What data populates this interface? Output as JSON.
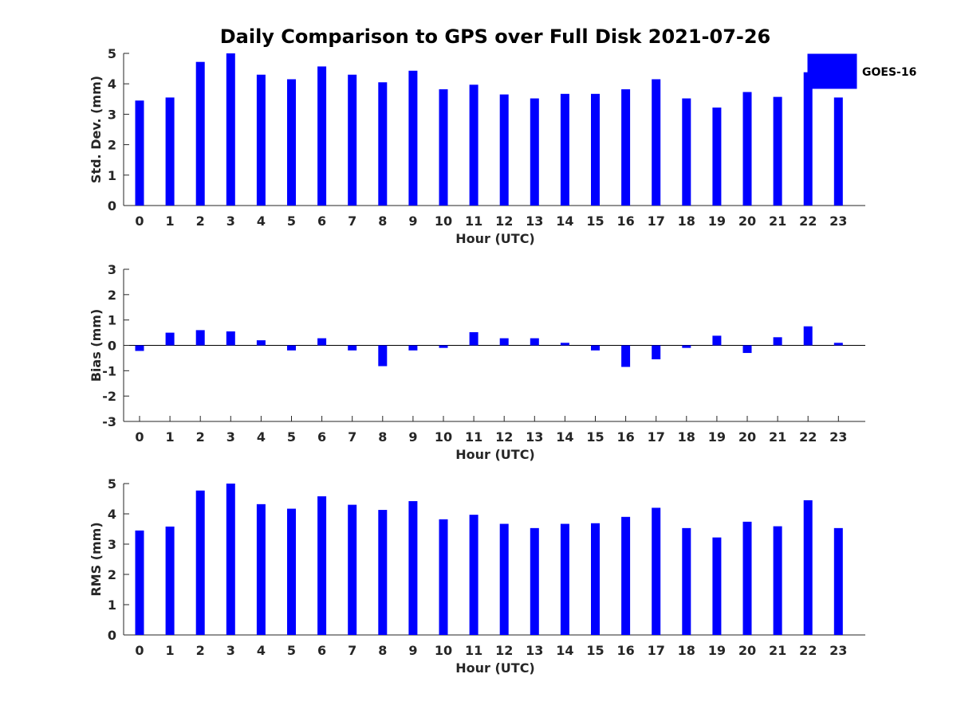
{
  "chart_data": [
    {
      "type": "bar",
      "id": "stddev",
      "title": "Daily Comparison to GPS over Full Disk 2021-07-26",
      "xlabel": "Hour (UTC)",
      "ylabel": "Std. Dev. (mm)",
      "categories": [
        "0",
        "1",
        "2",
        "3",
        "4",
        "5",
        "6",
        "7",
        "8",
        "9",
        "10",
        "11",
        "12",
        "13",
        "14",
        "15",
        "16",
        "17",
        "18",
        "19",
        "20",
        "21",
        "22",
        "23"
      ],
      "series": [
        {
          "name": "GOES-16",
          "color": "#0000ff",
          "values": [
            3.45,
            3.55,
            4.72,
            5.0,
            4.3,
            4.15,
            4.57,
            4.3,
            4.05,
            4.43,
            3.82,
            3.97,
            3.65,
            3.52,
            3.67,
            3.67,
            3.82,
            4.15,
            3.52,
            3.22,
            3.73,
            3.57,
            4.38,
            3.55
          ]
        }
      ],
      "ylim": [
        0,
        5
      ],
      "yticks": [
        0,
        1,
        2,
        3,
        4,
        5
      ],
      "legend": {
        "position": "top-right",
        "label": "GOES-16"
      },
      "grid": false
    },
    {
      "type": "bar",
      "id": "bias",
      "title": "",
      "xlabel": "Hour (UTC)",
      "ylabel": "Bias (mm)",
      "categories": [
        "0",
        "1",
        "2",
        "3",
        "4",
        "5",
        "6",
        "7",
        "8",
        "9",
        "10",
        "11",
        "12",
        "13",
        "14",
        "15",
        "16",
        "17",
        "18",
        "19",
        "20",
        "21",
        "22",
        "23"
      ],
      "series": [
        {
          "name": "GOES-16",
          "color": "#0000ff",
          "values": [
            -0.22,
            0.5,
            0.6,
            0.55,
            0.2,
            -0.2,
            0.28,
            -0.2,
            -0.82,
            -0.2,
            -0.1,
            0.52,
            0.28,
            0.28,
            0.1,
            -0.2,
            -0.85,
            -0.55,
            -0.1,
            0.38,
            -0.3,
            0.32,
            0.75,
            0.1
          ]
        }
      ],
      "ylim": [
        -3,
        3
      ],
      "yticks": [
        -3,
        -2,
        -1,
        0,
        1,
        2,
        3
      ],
      "grid": false
    },
    {
      "type": "bar",
      "id": "rms",
      "title": "",
      "xlabel": "Hour (UTC)",
      "ylabel": "RMS (mm)",
      "categories": [
        "0",
        "1",
        "2",
        "3",
        "4",
        "5",
        "6",
        "7",
        "8",
        "9",
        "10",
        "11",
        "12",
        "13",
        "14",
        "15",
        "16",
        "17",
        "18",
        "19",
        "20",
        "21",
        "22",
        "23"
      ],
      "series": [
        {
          "name": "GOES-16",
          "color": "#0000ff",
          "values": [
            3.45,
            3.58,
            4.77,
            5.0,
            4.32,
            4.17,
            4.58,
            4.3,
            4.13,
            4.42,
            3.82,
            3.97,
            3.67,
            3.53,
            3.67,
            3.69,
            3.9,
            4.2,
            3.53,
            3.22,
            3.74,
            3.59,
            4.45,
            3.53
          ]
        }
      ],
      "ylim": [
        0,
        5
      ],
      "yticks": [
        0,
        1,
        2,
        3,
        4,
        5
      ],
      "grid": false
    }
  ]
}
